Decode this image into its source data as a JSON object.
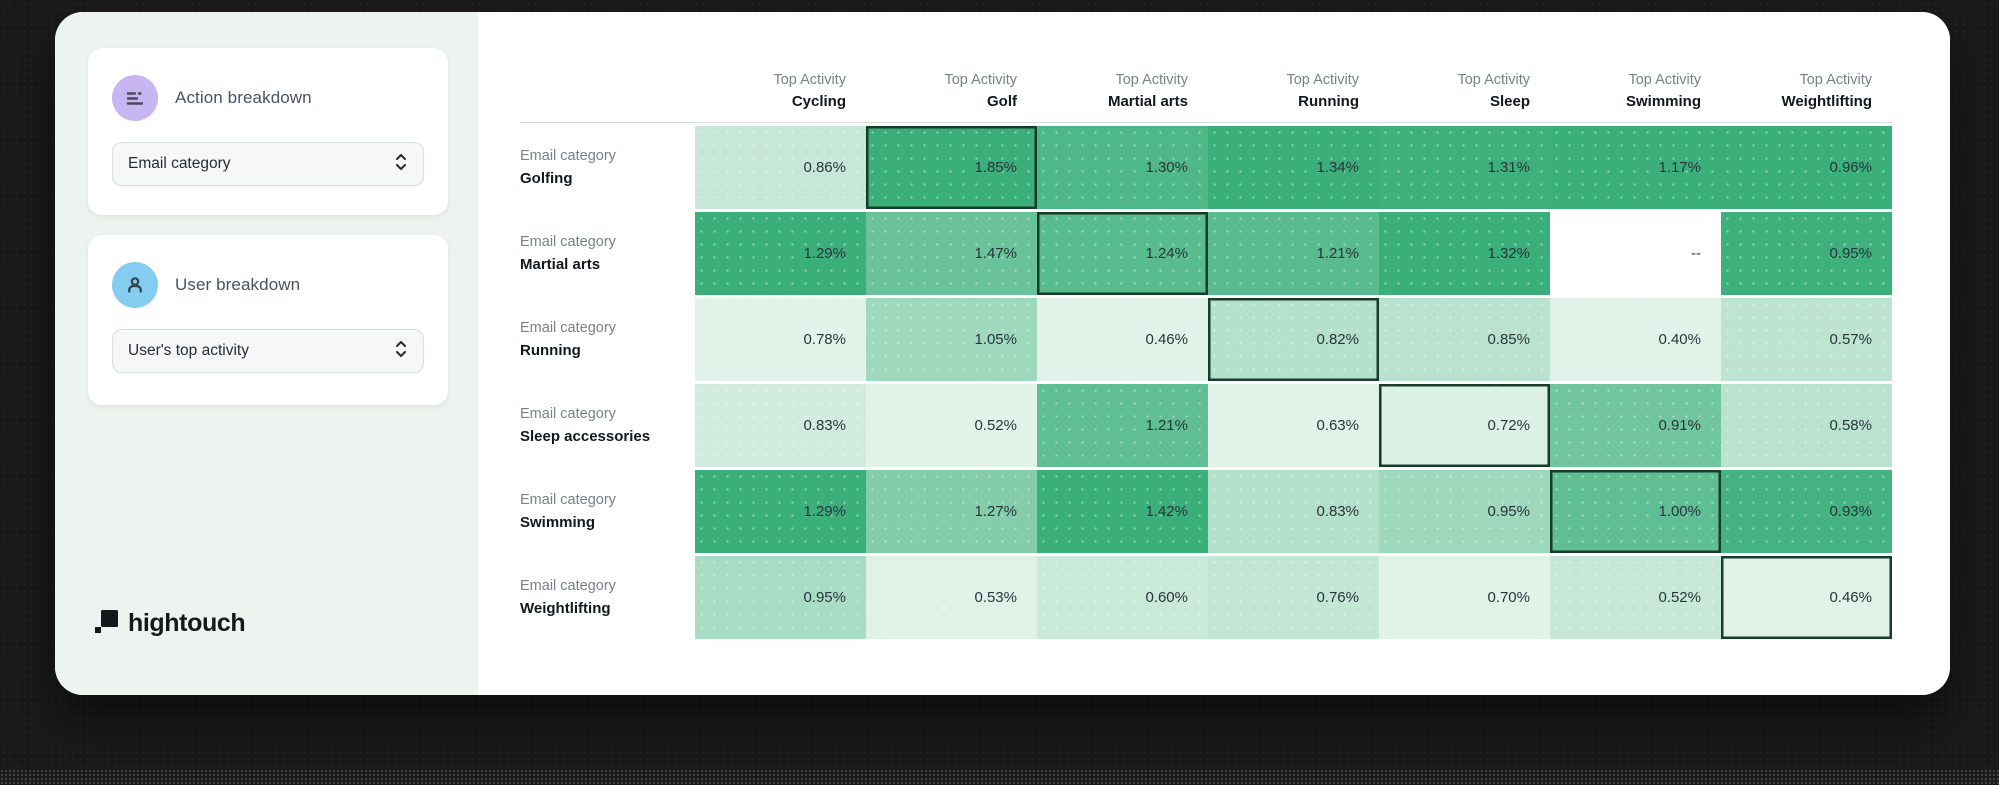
{
  "sidebar": {
    "action_breakdown": {
      "title": "Action breakdown",
      "selected": "Email category"
    },
    "user_breakdown": {
      "title": "User breakdown",
      "selected": "User's top activity"
    },
    "logo_text": "hightouch"
  },
  "chart_data": {
    "type": "heatmap",
    "column_header_label": "Top Activity",
    "row_header_label": "Email category",
    "columns": [
      "Cycling",
      "Golf",
      "Martial arts",
      "Running",
      "Sleep",
      "Swimming",
      "Weightlifting"
    ],
    "rows": [
      "Golfing",
      "Martial arts",
      "Running",
      "Sleep accessories",
      "Swimming",
      "Weightlifting"
    ],
    "values": [
      [
        0.86,
        1.85,
        1.3,
        1.34,
        1.31,
        1.17,
        0.96
      ],
      [
        1.29,
        1.47,
        1.24,
        1.21,
        1.32,
        null,
        0.95
      ],
      [
        0.78,
        1.05,
        0.46,
        0.82,
        0.85,
        0.4,
        0.57
      ],
      [
        0.83,
        0.52,
        1.21,
        0.63,
        0.72,
        0.91,
        0.58
      ],
      [
        1.29,
        1.27,
        1.42,
        0.83,
        0.95,
        1.0,
        0.93
      ],
      [
        0.95,
        0.53,
        0.6,
        0.76,
        0.7,
        0.52,
        0.46
      ]
    ],
    "value_format": "percent",
    "null_display": "--",
    "highlighted_cells": [
      [
        0,
        1
      ],
      [
        1,
        2
      ],
      [
        2,
        3
      ],
      [
        3,
        4
      ],
      [
        4,
        5
      ],
      [
        5,
        6
      ]
    ],
    "color_scale": "per-column",
    "colors": {
      "min_cell": "#e1f3e9",
      "max_cell": "#3aaf7a",
      "highlight_border": "#173c2b",
      "empty_cell": "#ffffff"
    }
  }
}
